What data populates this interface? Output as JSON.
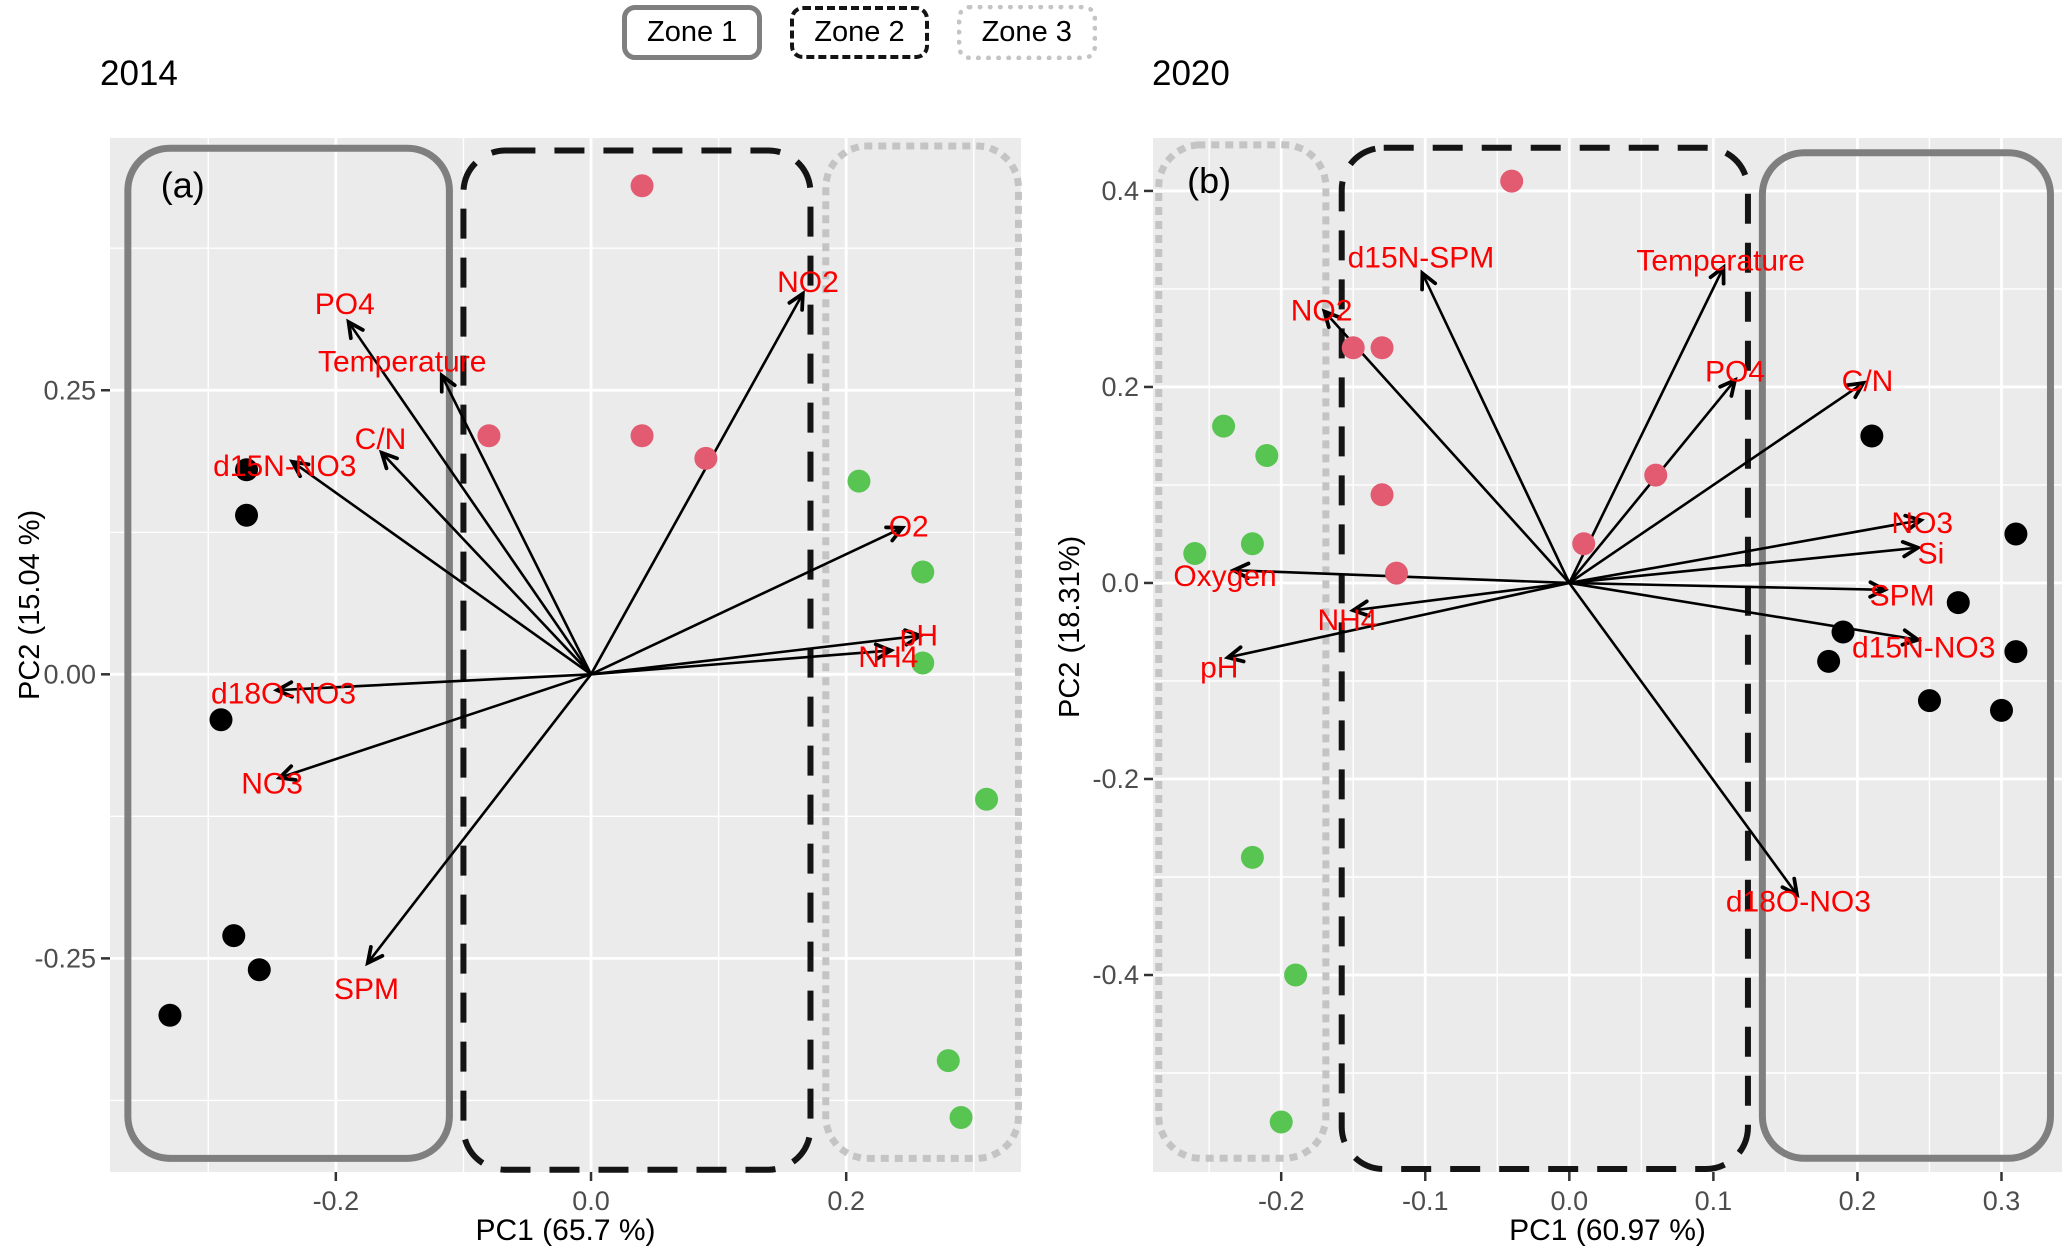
{
  "legend": {
    "items": [
      {
        "label": "Zone 1",
        "style": "solid"
      },
      {
        "label": "Zone 2",
        "style": "dashed"
      },
      {
        "label": "Zone 3",
        "style": "dotted"
      }
    ]
  },
  "colors": {
    "panel_bg": "#ebebeb",
    "grid": "#ffffff",
    "zone1_border": "#7f7f7f",
    "zone2_border": "#141414",
    "zone3_border": "#c4c4c4",
    "black": "#000000",
    "pink": "#e25b70",
    "green": "#58c452",
    "arrow": "#000000",
    "var_label": "#fb0000",
    "tick_label": "#4d4d4d",
    "tick_mark": "#333333",
    "axis_title": "#000000"
  },
  "chart_data": [
    {
      "type": "scatter",
      "subtype": "pca-biplot",
      "title": "2014",
      "panel_label": "(a)",
      "panel_label_pos": [
        -0.32,
        0.43
      ],
      "xlabel": "PC1 (65.7 %)",
      "ylabel": "PC2 (15.04 %)",
      "xlim": [
        -0.377,
        0.337
      ],
      "ylim": [
        -0.438,
        0.472
      ],
      "xticks": [
        {
          "v": -0.2,
          "label": "-0.2"
        },
        {
          "v": 0.0,
          "label": "0.0"
        },
        {
          "v": 0.2,
          "label": "0.2"
        }
      ],
      "yticks": [
        {
          "v": 0.25,
          "label": "0.25"
        },
        {
          "v": 0.0,
          "label": "0.00"
        },
        {
          "v": -0.25,
          "label": "-0.25"
        }
      ],
      "xminor": [
        -0.3,
        -0.1,
        0.1,
        0.3
      ],
      "yminor": [
        -0.375,
        -0.125,
        0.125,
        0.375
      ],
      "zones": [
        {
          "name": "Zone 1",
          "style": "solid",
          "x": [
            -0.363,
            -0.111
          ],
          "y": [
            -0.426,
            0.463
          ]
        },
        {
          "name": "Zone 2",
          "style": "dashed",
          "x": [
            -0.1,
            0.172
          ],
          "y": [
            -0.436,
            0.461
          ]
        },
        {
          "name": "Zone 3",
          "style": "dotted",
          "x": [
            0.184,
            0.335
          ],
          "y": [
            -0.426,
            0.465
          ]
        }
      ],
      "arrows": [
        {
          "label": "PO4",
          "x": -0.19,
          "y": 0.31,
          "lx": -0.193,
          "ly": 0.327
        },
        {
          "label": "Temperature",
          "x": -0.117,
          "y": 0.263,
          "lx": -0.148,
          "ly": 0.276
        },
        {
          "label": "C/N",
          "x": -0.164,
          "y": 0.195,
          "lx": -0.165,
          "ly": 0.208
        },
        {
          "label": "d15N-NO3",
          "x": -0.234,
          "y": 0.187,
          "lx": -0.24,
          "ly": 0.184
        },
        {
          "label": "NO2",
          "x": 0.166,
          "y": 0.335,
          "lx": 0.17,
          "ly": 0.346
        },
        {
          "label": "O2",
          "x": 0.244,
          "y": 0.129,
          "lx": 0.249,
          "ly": 0.131
        },
        {
          "label": "pH",
          "x": 0.258,
          "y": 0.034,
          "lx": 0.257,
          "ly": 0.035
        },
        {
          "label": "NH4",
          "x": 0.235,
          "y": 0.021,
          "lx": 0.233,
          "ly": 0.016
        },
        {
          "label": "d18O-NO3",
          "x": -0.246,
          "y": -0.014,
          "lx": -0.241,
          "ly": -0.016
        },
        {
          "label": "NO3",
          "x": -0.244,
          "y": -0.091,
          "lx": -0.25,
          "ly": -0.095
        },
        {
          "label": "SPM",
          "x": -0.175,
          "y": -0.254,
          "lx": -0.176,
          "ly": -0.276
        }
      ],
      "series": [
        {
          "name": "Zone 1 samples",
          "color_key": "black",
          "points": [
            [
              -0.27,
              0.18
            ],
            [
              -0.27,
              0.14
            ],
            [
              -0.29,
              -0.04
            ],
            [
              -0.28,
              -0.23
            ],
            [
              -0.26,
              -0.26
            ],
            [
              -0.33,
              -0.3
            ]
          ]
        },
        {
          "name": "Zone 2 samples",
          "color_key": "pink",
          "points": [
            [
              -0.08,
              0.21
            ],
            [
              0.04,
              0.43
            ],
            [
              0.04,
              0.21
            ],
            [
              0.09,
              0.19
            ]
          ]
        },
        {
          "name": "Zone 3 samples",
          "color_key": "green",
          "points": [
            [
              0.21,
              0.17
            ],
            [
              0.26,
              0.09
            ],
            [
              0.26,
              0.01
            ],
            [
              0.31,
              -0.11
            ],
            [
              0.28,
              -0.34
            ],
            [
              0.29,
              -0.39
            ]
          ]
        }
      ]
    },
    {
      "type": "scatter",
      "subtype": "pca-biplot",
      "title": "2020",
      "panel_label": "(b)",
      "panel_label_pos": [
        -0.25,
        0.41
      ],
      "xlabel": "PC1 (60.97 %)",
      "ylabel": "PC2 (18.31%)",
      "xlim": [
        -0.289,
        0.342
      ],
      "ylim": [
        -0.601,
        0.454
      ],
      "xticks": [
        {
          "v": -0.2,
          "label": "-0.2"
        },
        {
          "v": -0.1,
          "label": "-0.1"
        },
        {
          "v": 0.0,
          "label": "0.0"
        },
        {
          "v": 0.1,
          "label": "0.1"
        },
        {
          "v": 0.2,
          "label": "0.2"
        },
        {
          "v": 0.3,
          "label": "0.3"
        }
      ],
      "yticks": [
        {
          "v": 0.4,
          "label": "0.4"
        },
        {
          "v": 0.2,
          "label": "0.2"
        },
        {
          "v": 0.0,
          "label": "0.0"
        },
        {
          "v": -0.2,
          "label": "-0.2"
        },
        {
          "v": -0.4,
          "label": "-0.4"
        }
      ],
      "xminor": [
        -0.25,
        -0.15,
        -0.05,
        0.05,
        0.15,
        0.25
      ],
      "yminor": [
        -0.5,
        -0.3,
        -0.1,
        0.1,
        0.3
      ],
      "zones": [
        {
          "name": "Zone 3",
          "style": "dotted",
          "x": [
            -0.285,
            -0.169
          ],
          "y": [
            -0.587,
            0.447
          ]
        },
        {
          "name": "Zone 2",
          "style": "dashed",
          "x": [
            -0.158,
            0.124
          ],
          "y": [
            -0.598,
            0.444
          ]
        },
        {
          "name": "Zone 1",
          "style": "solid",
          "x": [
            0.134,
            0.334
          ],
          "y": [
            -0.587,
            0.439
          ]
        }
      ],
      "arrows": [
        {
          "label": "d15N-SPM",
          "x": -0.102,
          "y": 0.316,
          "lx": -0.103,
          "ly": 0.333
        },
        {
          "label": "NO2",
          "x": -0.17,
          "y": 0.277,
          "lx": -0.172,
          "ly": 0.279
        },
        {
          "label": "Temperature",
          "x": 0.107,
          "y": 0.322,
          "lx": 0.105,
          "ly": 0.33
        },
        {
          "label": "PO4",
          "x": 0.115,
          "y": 0.207,
          "lx": 0.115,
          "ly": 0.217
        },
        {
          "label": "C/N",
          "x": 0.204,
          "y": 0.204,
          "lx": 0.207,
          "ly": 0.207
        },
        {
          "label": "NO3",
          "x": 0.244,
          "y": 0.064,
          "lx": 0.245,
          "ly": 0.062
        },
        {
          "label": "Si",
          "x": 0.242,
          "y": 0.036,
          "lx": 0.251,
          "ly": 0.031
        },
        {
          "label": "SPM",
          "x": 0.219,
          "y": -0.007,
          "lx": 0.231,
          "ly": -0.012
        },
        {
          "label": "d15N-NO3",
          "x": 0.242,
          "y": -0.058,
          "lx": 0.246,
          "ly": -0.065
        },
        {
          "label": "Oxygen",
          "x": -0.233,
          "y": 0.013,
          "lx": -0.239,
          "ly": 0.008
        },
        {
          "label": "NH4",
          "x": -0.15,
          "y": -0.028,
          "lx": -0.154,
          "ly": -0.037
        },
        {
          "label": "pH",
          "x": -0.237,
          "y": -0.076,
          "lx": -0.243,
          "ly": -0.085
        },
        {
          "label": "d18O-NO3",
          "x": 0.158,
          "y": -0.318,
          "lx": 0.159,
          "ly": -0.324
        }
      ],
      "series": [
        {
          "name": "Zone 1 samples",
          "color_key": "black",
          "points": [
            [
              0.21,
              0.15
            ],
            [
              0.31,
              0.05
            ],
            [
              0.27,
              -0.02
            ],
            [
              0.19,
              -0.05
            ],
            [
              0.18,
              -0.08
            ],
            [
              0.31,
              -0.07
            ],
            [
              0.25,
              -0.12
            ],
            [
              0.3,
              -0.13
            ]
          ]
        },
        {
          "name": "Zone 2 samples",
          "color_key": "pink",
          "points": [
            [
              -0.04,
              0.41
            ],
            [
              -0.15,
              0.24
            ],
            [
              -0.13,
              0.24
            ],
            [
              -0.13,
              0.09
            ],
            [
              -0.12,
              0.01
            ],
            [
              0.01,
              0.04
            ],
            [
              0.06,
              0.11
            ]
          ]
        },
        {
          "name": "Zone 3 samples",
          "color_key": "green",
          "points": [
            [
              -0.24,
              0.16
            ],
            [
              -0.21,
              0.13
            ],
            [
              -0.22,
              0.04
            ],
            [
              -0.26,
              0.03
            ],
            [
              -0.22,
              -0.28
            ],
            [
              -0.19,
              -0.4
            ],
            [
              -0.2,
              -0.55
            ]
          ]
        }
      ]
    }
  ]
}
